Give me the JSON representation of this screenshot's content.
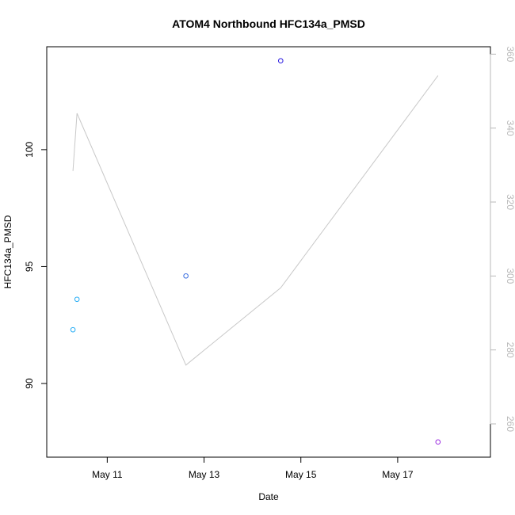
{
  "chart_data": {
    "type": "scatter",
    "title": "ATOM4 Northbound HFC134a_PMSD",
    "xlabel": "Date",
    "ylabel": "HFC134a_PMSD",
    "x_ticks": [
      "May 11",
      "May 13",
      "May 15",
      "May 17"
    ],
    "y_ticks": [
      "90",
      "95",
      "100"
    ],
    "y2_ticks": [
      "260",
      "280",
      "300",
      "320",
      "340",
      "360"
    ],
    "xlim": [
      "2016-05-09 18:00",
      "2016-05-18 22:00"
    ],
    "ylim": [
      86.85,
      104.4
    ],
    "y2lim": [
      251,
      362
    ],
    "series": [
      {
        "axis": "left",
        "points": [
          {
            "x": "2016-05-10 07:00",
            "y": 92.3,
            "color": "#29aef5"
          },
          {
            "x": "2016-05-10 09:00",
            "y": 93.6,
            "color": "#29aef5"
          },
          {
            "x": "2016-05-12 15:00",
            "y": 94.6,
            "color": "#3a6ee0"
          },
          {
            "x": "2016-05-14 14:00",
            "y": 103.8,
            "color": "#2a1ae0"
          },
          {
            "x": "2016-05-17 20:00",
            "y": 87.5,
            "color": "#9a2ae0"
          }
        ]
      },
      {
        "axis": "right",
        "type": "line",
        "color": "#c8c8c8",
        "points": [
          {
            "x": "2016-05-10 07:00",
            "y": 328.4
          },
          {
            "x": "2016-05-10 09:00",
            "y": 344.0
          },
          {
            "x": "2016-05-12 15:00",
            "y": 275.9
          },
          {
            "x": "2016-05-14 14:00",
            "y": 296.8
          },
          {
            "x": "2016-05-17 20:00",
            "y": 354.2
          }
        ]
      }
    ]
  }
}
